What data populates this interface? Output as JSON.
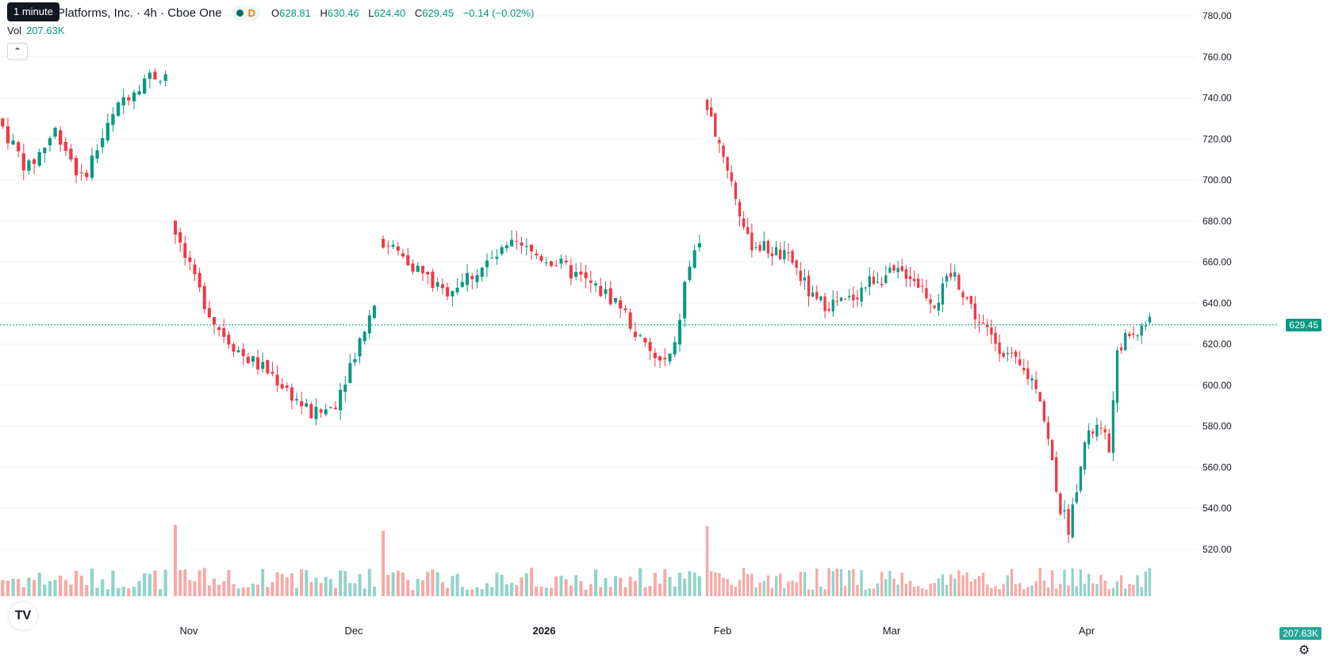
{
  "legend": {
    "symbol_title": "Platforms, Inc. · 4h · Cboe One",
    "interval_symbol": "D",
    "open_label": "O",
    "open": "628.81",
    "high_label": "H",
    "high": "630.46",
    "low_label": "L",
    "low": "624.40",
    "close_label": "C",
    "close": "629.45",
    "change": "−0.14 (−0.02%)"
  },
  "tooltip": "1 minute",
  "volume": {
    "label": "Vol",
    "value": "207.63K"
  },
  "collapse_icon": "chevron-up-icon",
  "logo_text": "TV",
  "settings_icon": "gear-icon",
  "colors": {
    "up": "#089981",
    "down": "#f23645",
    "up_volume": "#92d3c9",
    "down_volume": "#f7a9a7",
    "grid": "#f0f3fa"
  },
  "chart_data": {
    "type": "candlestick",
    "y_axis": {
      "min": 510,
      "max": 780,
      "ticks": [
        "780.00",
        "760.00",
        "740.00",
        "720.00",
        "700.00",
        "680.00",
        "660.00",
        "640.00",
        "620.00",
        "600.00",
        "580.00",
        "560.00",
        "540.00",
        "520.00"
      ]
    },
    "x_axis": {
      "labels": [
        "Nov",
        "Dec",
        "2026",
        "Feb",
        "Mar",
        "Apr"
      ]
    },
    "last_price": "629.45",
    "last_volume": "207.63K",
    "segments": [
      {
        "start": "Oct 3",
        "end": "Oct 30",
        "n": 32,
        "path": [
          [
            0,
            730
          ],
          [
            0.18,
            705
          ],
          [
            0.35,
            725
          ],
          [
            0.5,
            700
          ],
          [
            0.62,
            720
          ],
          [
            0.75,
            740
          ],
          [
            0.88,
            750
          ],
          [
            1.0,
            752
          ]
        ]
      },
      {
        "start": "Oct 30",
        "end": "Dec 5",
        "n": 42,
        "path": [
          [
            0,
            680
          ],
          [
            0.12,
            650
          ],
          [
            0.22,
            630
          ],
          [
            0.35,
            615
          ],
          [
            0.5,
            605
          ],
          [
            0.6,
            595
          ],
          [
            0.7,
            585
          ],
          [
            0.8,
            590
          ],
          [
            0.9,
            615
          ],
          [
            1.0,
            640
          ]
        ]
      },
      {
        "start": "Dec 5",
        "end": "Jan 30",
        "n": 65,
        "path": [
          [
            0,
            672
          ],
          [
            0.1,
            660
          ],
          [
            0.2,
            645
          ],
          [
            0.3,
            655
          ],
          [
            0.42,
            668
          ],
          [
            0.55,
            660
          ],
          [
            0.65,
            650
          ],
          [
            0.75,
            640
          ],
          [
            0.82,
            620
          ],
          [
            0.88,
            610
          ],
          [
            0.92,
            615
          ],
          [
            0.96,
            655
          ],
          [
            1.0,
            670
          ]
        ]
      },
      {
        "start": "Jan 30",
        "end": "Apr 10",
        "n": 110,
        "path": [
          [
            0,
            740
          ],
          [
            0.05,
            710
          ],
          [
            0.1,
            670
          ],
          [
            0.16,
            665
          ],
          [
            0.2,
            660
          ],
          [
            0.25,
            640
          ],
          [
            0.32,
            640
          ],
          [
            0.38,
            652
          ],
          [
            0.46,
            655
          ],
          [
            0.52,
            640
          ],
          [
            0.56,
            655
          ],
          [
            0.62,
            630
          ],
          [
            0.7,
            610
          ],
          [
            0.75,
            600
          ],
          [
            0.8,
            540
          ],
          [
            0.82,
            530
          ],
          [
            0.85,
            570
          ],
          [
            0.88,
            580
          ],
          [
            0.91,
            570
          ],
          [
            0.93,
            620
          ],
          [
            1.0,
            631
          ]
        ]
      }
    ]
  }
}
